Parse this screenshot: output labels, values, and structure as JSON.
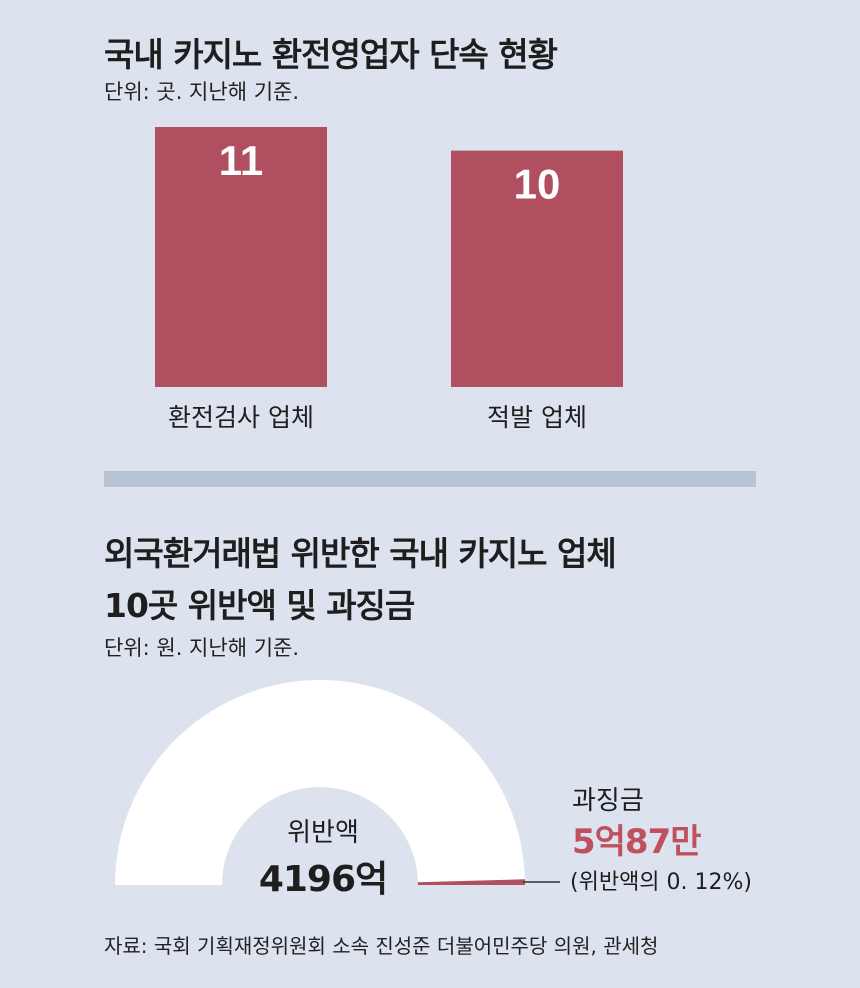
{
  "chart_data": [
    {
      "type": "bar",
      "title": "국내 카지노 환전영업자 단속 현황",
      "subtitle": "단위: 곳. 지난해 기준.",
      "categories": [
        "환전검사 업체",
        "적발 업체"
      ],
      "values": [
        11,
        10
      ],
      "ylim": [
        0,
        11
      ],
      "bar_color": "#b04f5f"
    },
    {
      "type": "pie",
      "title": "외국환거래법 위반한 국내 카지노 업체\n10곳 위반액 및 과징금",
      "subtitle": "단위: 원. 지난해 기준.",
      "slices": [
        {
          "label": "위반액",
          "value_text": "4196억",
          "value": 4196,
          "color": "#ffffff"
        },
        {
          "label": "과징금",
          "value_text": "5억87만",
          "value": 5.0087,
          "note": "(위반액의 0. 12%)",
          "color": "#b04f5f"
        }
      ],
      "layout": "half-donut"
    }
  ],
  "source": "자료: 국회 기획재정위원회 소속 진성준 더불어민주당 의원, 관세청"
}
